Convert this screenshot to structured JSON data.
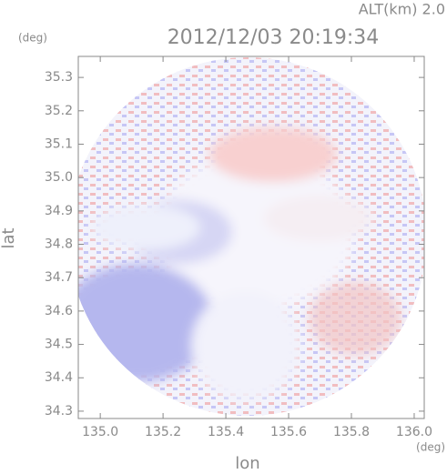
{
  "chart_data": {
    "type": "radar-image",
    "annotation": "ALT(km) 2.0",
    "title": "2012/12/03 20:19:34",
    "x_label": "lon",
    "x_unit": "(deg)",
    "y_label": "lat",
    "y_unit": "(deg)",
    "xlim": [
      134.93,
      136.032
    ],
    "ylim": [
      34.278,
      35.363
    ],
    "xticks": [
      {
        "value": 135,
        "label": "135.0"
      },
      135.2,
      135.4,
      135.6,
      135.8,
      {
        "value": 136,
        "label": "136.0"
      }
    ],
    "yticks": [
      34.3,
      34.4,
      34.5,
      34.6,
      34.7,
      34.8,
      34.9,
      {
        "value": 35,
        "label": "35.0"
      },
      35.1,
      35.2,
      35.3
    ]
  }
}
